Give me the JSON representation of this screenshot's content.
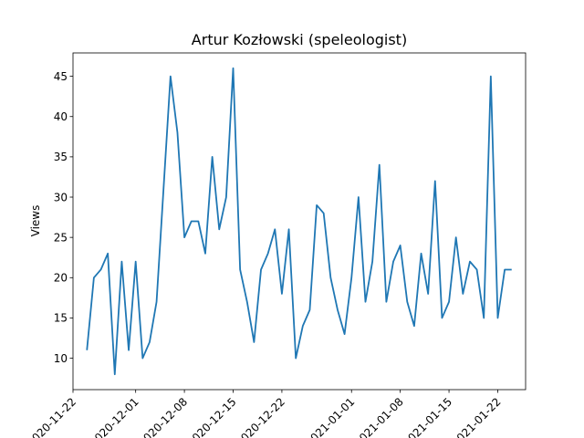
{
  "chart_data": {
    "type": "line",
    "title": "Artur Kozłowski (speleologist)",
    "ylabel": "Views",
    "xlabel": "",
    "x_tick_labels": [
      "2020-11-22",
      "2020-12-01",
      "2020-12-08",
      "2020-12-15",
      "2020-12-22",
      "2021-01-01",
      "2021-01-08",
      "2021-01-15",
      "2021-01-22"
    ],
    "y_ticks": [
      10,
      15,
      20,
      25,
      30,
      35,
      40,
      45
    ],
    "ylim": [
      6.1,
      47.9
    ],
    "xlim": [
      "2020-11-22",
      "2021-01-26"
    ],
    "grid": false,
    "line_color": "#1f77b4",
    "series": [
      {
        "x": [
          "2020-11-24",
          "2020-11-25",
          "2020-11-26",
          "2020-11-27",
          "2020-11-28",
          "2020-11-29",
          "2020-11-30",
          "2020-12-01",
          "2020-12-02",
          "2020-12-03",
          "2020-12-04",
          "2020-12-05",
          "2020-12-06",
          "2020-12-07",
          "2020-12-08",
          "2020-12-09",
          "2020-12-10",
          "2020-12-11",
          "2020-12-12",
          "2020-12-13",
          "2020-12-14",
          "2020-12-15",
          "2020-12-16",
          "2020-12-17",
          "2020-12-18",
          "2020-12-19",
          "2020-12-20",
          "2020-12-21",
          "2020-12-22",
          "2020-12-23",
          "2020-12-24",
          "2020-12-25",
          "2020-12-26",
          "2020-12-27",
          "2020-12-28",
          "2020-12-29",
          "2020-12-30",
          "2020-12-31",
          "2021-01-01",
          "2021-01-02",
          "2021-01-03",
          "2021-01-04",
          "2021-01-05",
          "2021-01-06",
          "2021-01-07",
          "2021-01-08",
          "2021-01-09",
          "2021-01-10",
          "2021-01-11",
          "2021-01-12",
          "2021-01-13",
          "2021-01-14",
          "2021-01-15",
          "2021-01-16",
          "2021-01-17",
          "2021-01-18",
          "2021-01-19",
          "2021-01-20",
          "2021-01-21",
          "2021-01-22",
          "2021-01-23",
          "2021-01-24"
        ],
        "values": [
          11,
          20,
          21,
          23,
          8,
          22,
          11,
          22,
          10,
          12,
          17,
          31,
          45,
          38,
          25,
          27,
          27,
          23,
          35,
          26,
          30,
          46,
          21,
          17,
          12,
          21,
          23,
          26,
          18,
          26,
          10,
          14,
          16,
          29,
          28,
          20,
          16,
          13,
          20,
          30,
          17,
          22,
          34,
          17,
          22,
          24,
          17,
          14,
          23,
          18,
          32,
          15,
          17,
          25,
          18,
          22,
          21,
          15,
          45,
          15,
          21,
          21
        ]
      }
    ]
  }
}
